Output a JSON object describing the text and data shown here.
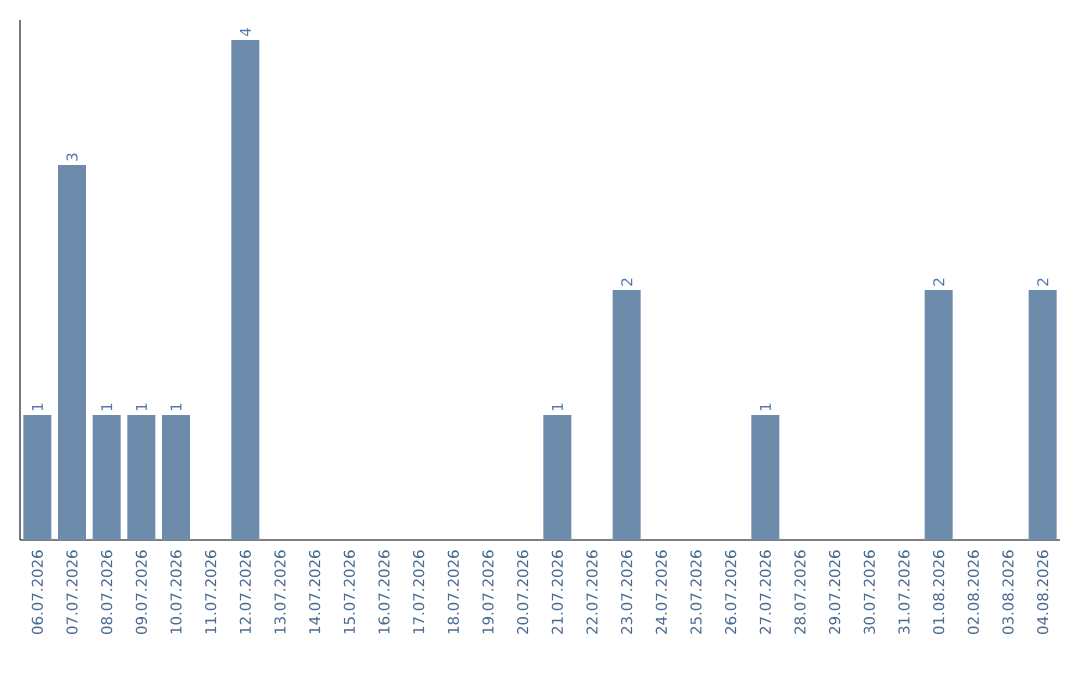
{
  "chart_data": {
    "type": "bar",
    "categories": [
      "06.07.2026",
      "07.07.2026",
      "08.07.2026",
      "09.07.2026",
      "10.07.2026",
      "11.07.2026",
      "12.07.2026",
      "13.07.2026",
      "14.07.2026",
      "15.07.2026",
      "16.07.2026",
      "17.07.2026",
      "18.07.2026",
      "19.07.2026",
      "20.07.2026",
      "21.07.2026",
      "22.07.2026",
      "23.07.2026",
      "24.07.2026",
      "25.07.2026",
      "26.07.2026",
      "27.07.2026",
      "28.07.2026",
      "29.07.2026",
      "30.07.2026",
      "31.07.2026",
      "01.08.2026",
      "02.08.2026",
      "03.08.2026",
      "04.08.2026"
    ],
    "values": [
      1,
      3,
      1,
      1,
      1,
      0,
      4,
      0,
      0,
      0,
      0,
      0,
      0,
      0,
      0,
      1,
      0,
      2,
      0,
      0,
      0,
      1,
      0,
      0,
      0,
      0,
      2,
      0,
      0,
      2
    ],
    "value_labels": [
      "1",
      "3",
      "1",
      "1",
      "1",
      null,
      "4",
      null,
      null,
      null,
      null,
      null,
      null,
      null,
      null,
      "1",
      null,
      "2",
      null,
      null,
      null,
      "1",
      null,
      null,
      null,
      null,
      "2",
      null,
      null,
      "2"
    ],
    "color": "#6d8cab"
  }
}
